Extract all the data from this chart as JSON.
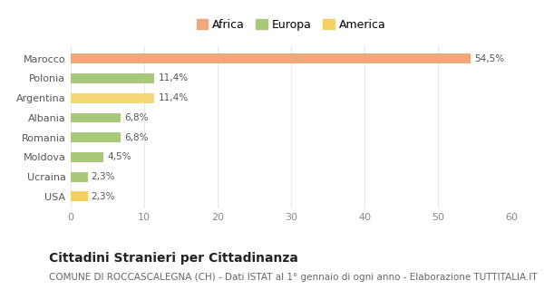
{
  "categories": [
    "USA",
    "Ucraina",
    "Moldova",
    "Romania",
    "Albania",
    "Argentina",
    "Polonia",
    "Marocco"
  ],
  "values": [
    2.3,
    2.3,
    4.5,
    6.8,
    6.8,
    11.4,
    11.4,
    54.5
  ],
  "labels": [
    "2,3%",
    "2,3%",
    "4,5%",
    "6,8%",
    "6,8%",
    "11,4%",
    "11,4%",
    "54,5%"
  ],
  "colors": [
    "#f5d060",
    "#a8c87a",
    "#a8c87a",
    "#a8c87a",
    "#a8c87a",
    "#f5d878",
    "#a8c87a",
    "#f0a878"
  ],
  "legend": [
    {
      "label": "Africa",
      "color": "#f0a878"
    },
    {
      "label": "Europa",
      "color": "#a8c87a"
    },
    {
      "label": "America",
      "color": "#f5d060"
    }
  ],
  "xlim": [
    0,
    60
  ],
  "xticks": [
    0,
    10,
    20,
    30,
    40,
    50,
    60
  ],
  "title": "Cittadini Stranieri per Cittadinanza",
  "subtitle": "COMUNE DI ROCCASCALEGNA (CH) - Dati ISTAT al 1° gennaio di ogni anno - Elaborazione TUTTITALIA.IT",
  "background_color": "#ffffff",
  "plot_bg_color": "#ffffff",
  "grid_color": "#e8e8e8",
  "bar_height": 0.5,
  "title_fontsize": 10,
  "subtitle_fontsize": 7.5,
  "label_fontsize": 7.5,
  "tick_fontsize": 8,
  "legend_fontsize": 9,
  "yticklabel_color": "#555555",
  "xticklabel_color": "#888888"
}
